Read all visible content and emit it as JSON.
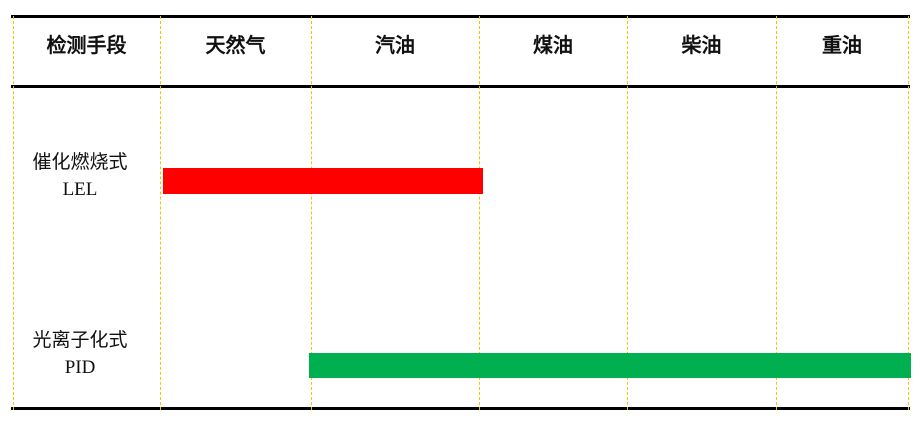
{
  "header": {
    "method_label": "检测手段",
    "fuels": [
      "天然气",
      "汽油",
      "煤油",
      "柴油",
      "重油"
    ]
  },
  "rows": [
    {
      "name": "催化燃烧式",
      "abbr": "LEL",
      "range_from": "天然气",
      "range_to": "汽油",
      "color": "#ff0000"
    },
    {
      "name": "光离子化式",
      "abbr": "PID",
      "range_from": "汽油",
      "range_to": "重油",
      "color": "#00b050"
    }
  ]
}
